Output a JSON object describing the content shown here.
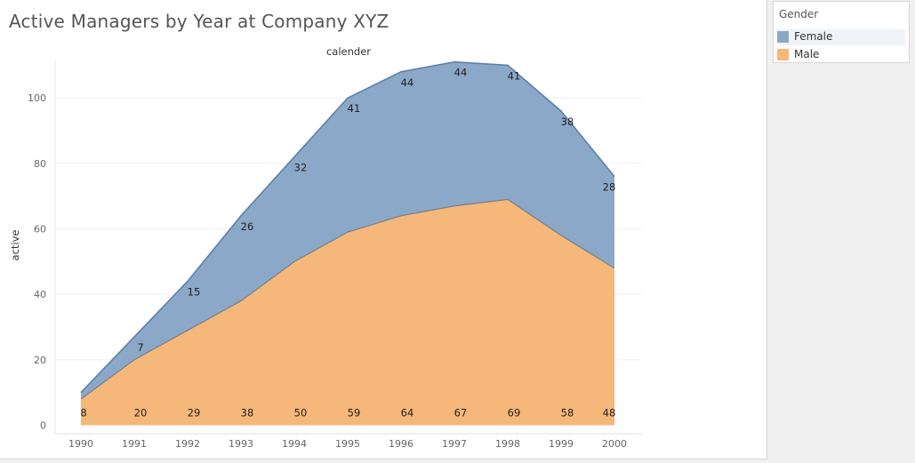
{
  "title": "Active Managers by Year at Company XYZ",
  "legend": {
    "title": "Gender",
    "items": [
      {
        "label": "Female",
        "color": "#8ba8c8"
      },
      {
        "label": "Male",
        "color": "#f5b77a"
      }
    ]
  },
  "chart_data": {
    "type": "area",
    "stacked": true,
    "title": "Active Managers by Year at Company XYZ",
    "column_header": "calender",
    "xlabel": "",
    "ylabel": "active",
    "x": [
      "1990",
      "1991",
      "1992",
      "1993",
      "1994",
      "1995",
      "1996",
      "1997",
      "1998",
      "1999",
      "2000"
    ],
    "ylim": [
      0,
      115
    ],
    "yticks": [
      0,
      20,
      40,
      60,
      80,
      100
    ],
    "grid": true,
    "legend_position": "right",
    "series": [
      {
        "name": "Male",
        "color": "#f5b77a",
        "line_color": "#7a7f86",
        "values": [
          8,
          20,
          29,
          38,
          50,
          59,
          64,
          67,
          69,
          58,
          48
        ]
      },
      {
        "name": "Female",
        "color": "#8ba8c8",
        "line_color": "#6080a8",
        "values": [
          2,
          7,
          15,
          26,
          32,
          41,
          44,
          44,
          41,
          38,
          28
        ]
      }
    ]
  }
}
